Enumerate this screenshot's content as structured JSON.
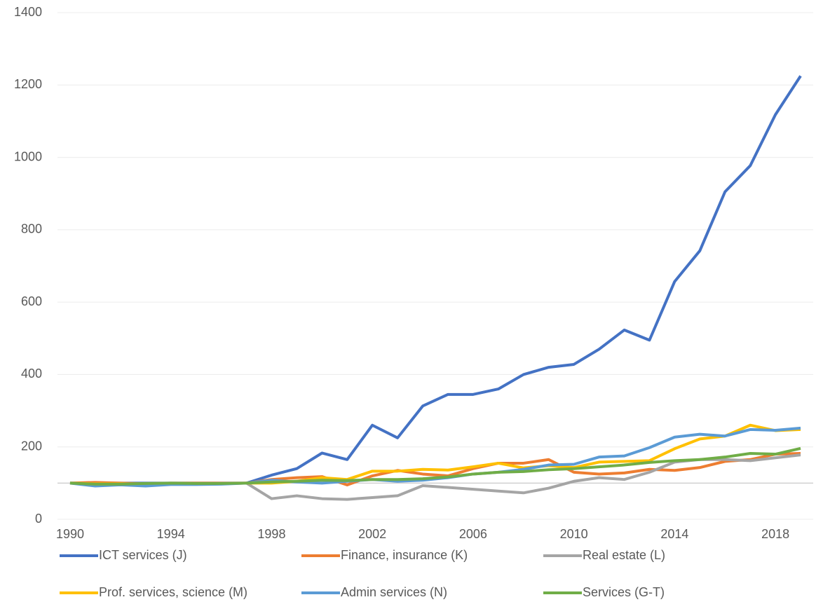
{
  "chart_data": {
    "type": "line",
    "x": [
      1990,
      1991,
      1992,
      1993,
      1994,
      1995,
      1996,
      1997,
      1998,
      1999,
      2000,
      2001,
      2002,
      2003,
      2004,
      2005,
      2006,
      2007,
      2008,
      2009,
      2010,
      2011,
      2012,
      2013,
      2014,
      2015,
      2016,
      2017,
      2018,
      2019
    ],
    "series": [
      {
        "name": "ICT services (J)",
        "color": "#4472c4",
        "values": [
          100,
          100,
          100,
          100,
          100,
          100,
          100,
          100,
          122,
          140,
          183,
          165,
          260,
          225,
          313,
          345,
          345,
          360,
          400,
          420,
          428,
          470,
          523,
          495,
          657,
          742,
          905,
          977,
          1118,
          1225
        ]
      },
      {
        "name": "Finance, insurance (K)",
        "color": "#ed7d31",
        "values": [
          100,
          102,
          100,
          98,
          100,
          100,
          100,
          100,
          110,
          115,
          118,
          95,
          120,
          135,
          125,
          120,
          140,
          155,
          155,
          165,
          130,
          125,
          128,
          138,
          135,
          143,
          160,
          165,
          180,
          182
        ]
      },
      {
        "name": "Real estate (L)",
        "color": "#a5a5a5",
        "values": [
          100,
          95,
          97,
          97,
          98,
          98,
          99,
          100,
          57,
          65,
          57,
          55,
          60,
          65,
          93,
          88,
          83,
          78,
          73,
          86,
          105,
          115,
          110,
          130,
          158,
          165,
          165,
          162,
          170,
          178
        ]
      },
      {
        "name": "Prof. services, science (M)",
        "color": "#ffc000",
        "values": [
          100,
          98,
          98,
          97,
          99,
          98,
          98,
          100,
          100,
          105,
          115,
          110,
          133,
          133,
          138,
          136,
          145,
          155,
          142,
          148,
          143,
          158,
          160,
          162,
          195,
          222,
          230,
          260,
          245,
          248
        ]
      },
      {
        "name": "Admin services (N)",
        "color": "#5b9bd5",
        "values": [
          100,
          92,
          95,
          92,
          96,
          96,
          97,
          100,
          108,
          103,
          100,
          105,
          110,
          105,
          108,
          115,
          125,
          130,
          138,
          150,
          152,
          172,
          175,
          198,
          227,
          235,
          230,
          248,
          246,
          252
        ]
      },
      {
        "name": "Services (G-T)",
        "color": "#70ad47",
        "values": [
          100,
          97,
          97,
          99,
          100,
          99,
          99,
          100,
          103,
          105,
          108,
          107,
          110,
          110,
          112,
          117,
          125,
          130,
          132,
          137,
          140,
          145,
          150,
          157,
          162,
          165,
          172,
          182,
          180,
          196
        ]
      }
    ],
    "xlim": [
      1989.5,
      2019.5
    ],
    "xticks": [
      1990,
      1994,
      1998,
      2002,
      2006,
      2010,
      2014,
      2018
    ],
    "ylim": [
      0,
      1400
    ],
    "yticks": [
      0,
      200,
      400,
      600,
      800,
      1000,
      1200,
      1400
    ],
    "grid": true,
    "reference_line": 100,
    "legend": "bottom"
  }
}
